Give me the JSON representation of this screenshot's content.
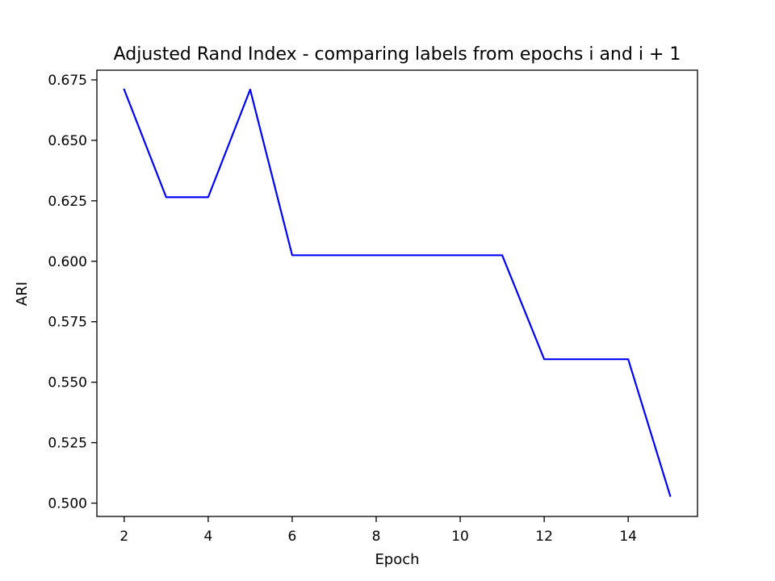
{
  "chart_data": {
    "type": "line",
    "title": "Adjusted Rand Index - comparing labels from epochs i and i + 1",
    "xlabel": "Epoch",
    "ylabel": "ARI",
    "xlim": [
      1.35,
      15.65
    ],
    "ylim": [
      0.4945,
      0.679
    ],
    "xticks": [
      2,
      4,
      6,
      8,
      10,
      12,
      14
    ],
    "xtick_labels": [
      "2",
      "4",
      "6",
      "8",
      "10",
      "12",
      "14"
    ],
    "yticks": [
      0.5,
      0.525,
      0.55,
      0.575,
      0.6,
      0.625,
      0.65,
      0.675
    ],
    "ytick_labels": [
      "0.500",
      "0.525",
      "0.550",
      "0.575",
      "0.600",
      "0.625",
      "0.650",
      "0.675"
    ],
    "grid": false,
    "series": [
      {
        "color": "#0000ff",
        "x": [
          2,
          3,
          4,
          5,
          6,
          7,
          8,
          9,
          10,
          11,
          12,
          13,
          14,
          15
        ],
        "y": [
          0.671,
          0.6265,
          0.6265,
          0.671,
          0.6025,
          0.6025,
          0.6025,
          0.6025,
          0.6025,
          0.6025,
          0.5595,
          0.5595,
          0.5595,
          0.503
        ]
      }
    ]
  }
}
